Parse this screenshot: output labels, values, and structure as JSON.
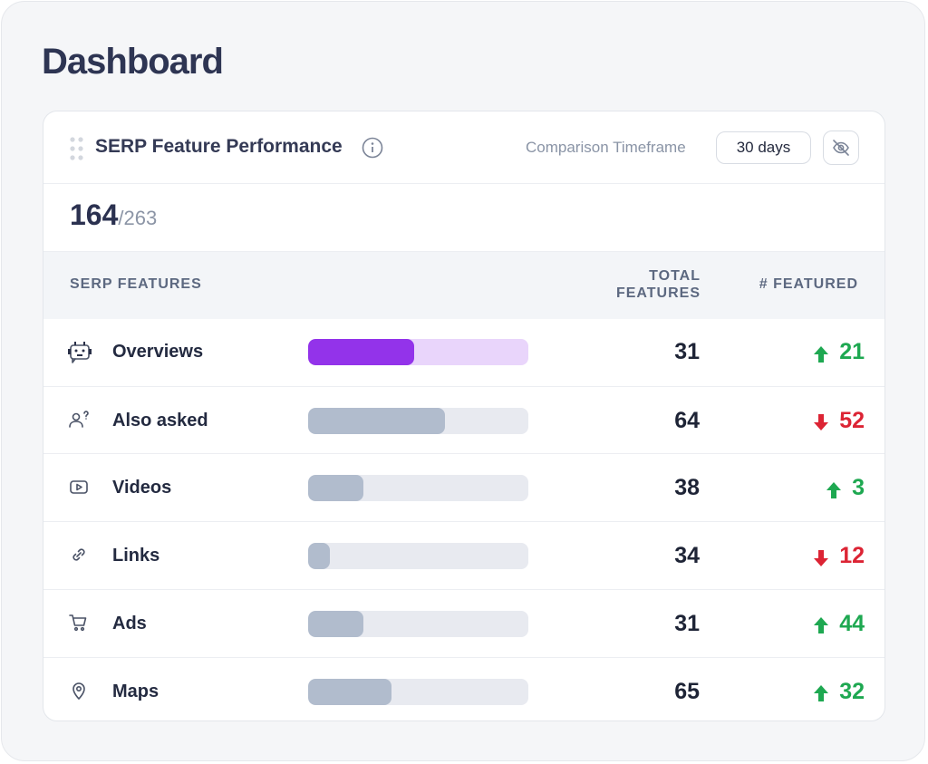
{
  "page": {
    "title": "Dashboard"
  },
  "card": {
    "title": "SERP Feature Performance",
    "timeframe_label": "Comparison Timeframe",
    "timeframe": "30 days",
    "count": 164,
    "of_total": "/263",
    "columns": [
      "SERP FEATURES",
      "TOTAL FEATURES",
      "# FEATURED"
    ],
    "rows": [
      {
        "name": "Overviews",
        "bar": 48,
        "color": "#9333ea",
        "track": "#e9d5fb",
        "total": 31,
        "featured": 21,
        "trend": "up"
      },
      {
        "name": "Also asked",
        "bar": 62,
        "color": "#b1bccd",
        "track": "#e8eaf0",
        "total": 64,
        "featured": 52,
        "trend": "down"
      },
      {
        "name": "Videos",
        "bar": 25,
        "color": "#b1bccd",
        "track": "#e8eaf0",
        "total": 38,
        "featured": 3,
        "trend": "up"
      },
      {
        "name": "Links",
        "bar": 10,
        "color": "#b1bccd",
        "track": "#e8eaf0",
        "total": 34,
        "featured": 12,
        "trend": "down"
      },
      {
        "name": "Ads",
        "bar": 25,
        "color": "#b1bccd",
        "track": "#e8eaf0",
        "total": 31,
        "featured": 44,
        "trend": "up"
      },
      {
        "name": "Maps",
        "bar": 38,
        "color": "#b1bccd",
        "track": "#e8eaf0",
        "total": 65,
        "featured": 32,
        "trend": "up"
      }
    ]
  }
}
